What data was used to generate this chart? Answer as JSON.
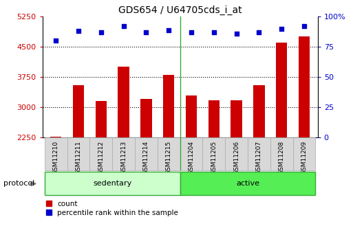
{
  "title": "GDS654 / U64705cds_i_at",
  "samples": [
    "GSM11210",
    "GSM11211",
    "GSM11212",
    "GSM11213",
    "GSM11214",
    "GSM11215",
    "GSM11204",
    "GSM11205",
    "GSM11206",
    "GSM11207",
    "GSM11208",
    "GSM11209"
  ],
  "counts": [
    2270,
    3550,
    3150,
    4000,
    3200,
    3800,
    3300,
    3180,
    3170,
    3550,
    4600,
    4750
  ],
  "percentile_ranks": [
    80,
    88,
    87,
    92,
    87,
    89,
    87,
    87,
    86,
    87,
    90,
    92
  ],
  "ylim_left": [
    2250,
    5250
  ],
  "ylim_right": [
    0,
    100
  ],
  "yticks_left": [
    2250,
    3000,
    3750,
    4500,
    5250
  ],
  "yticks_right": [
    0,
    25,
    50,
    75,
    100
  ],
  "ytick_labels_right": [
    "0",
    "25",
    "50",
    "75",
    "100%"
  ],
  "bar_color": "#cc0000",
  "dot_color": "#0000cc",
  "bg_color": "#ffffff",
  "sedentary_color": "#ccffcc",
  "active_color": "#55ee55",
  "sedentary_label": "sedentary",
  "active_label": "active",
  "protocol_label": "protocol",
  "n_sedentary": 6,
  "n_active": 6,
  "legend_count_label": "count",
  "legend_pct_label": "percentile rank within the sample"
}
